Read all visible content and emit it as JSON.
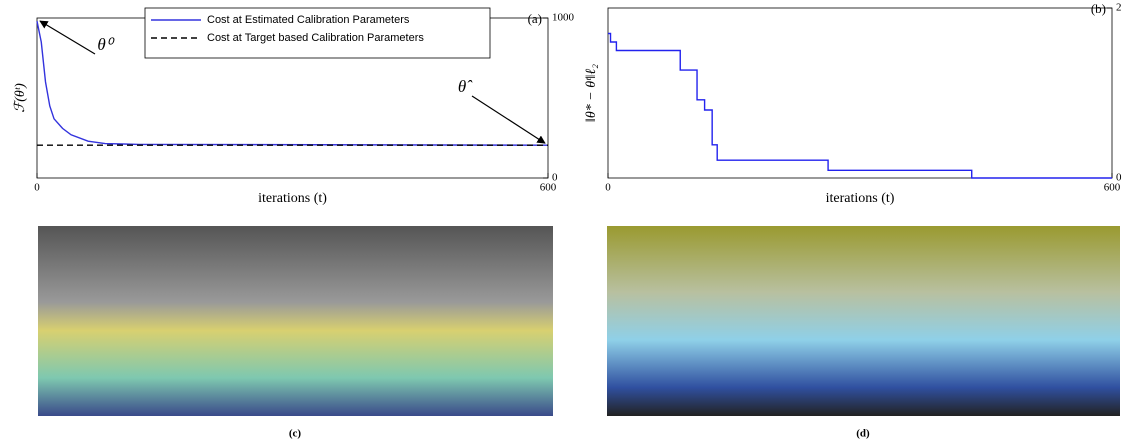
{
  "chart_data": [
    {
      "type": "line",
      "panel_label": "(a)",
      "annotations": [
        "θ⁰",
        "θ̂"
      ],
      "xlabel": "iterations (t)",
      "ylabel": "ℱ(θᵗ)",
      "xlim": [
        0,
        600
      ],
      "xticks": [
        0,
        600
      ],
      "ylim": [
        0,
        1000
      ],
      "yticks": [
        0,
        1000
      ],
      "legend": "upper right",
      "series": [
        {
          "name": "Cost at Estimated Calibration Parameters",
          "color": "#3333dd",
          "linestyle": "solid",
          "x": [
            0,
            5,
            10,
            15,
            20,
            30,
            40,
            60,
            80,
            120,
            600
          ],
          "values": [
            980,
            850,
            600,
            450,
            370,
            310,
            270,
            230,
            215,
            210,
            205
          ]
        },
        {
          "name": "Cost at Target based Calibration Parameters",
          "color": "#000000",
          "linestyle": "dashed",
          "x": [
            0,
            600
          ],
          "values": [
            205,
            205
          ]
        }
      ]
    },
    {
      "type": "line",
      "panel_label": "(b)",
      "xlabel": "iterations (t)",
      "ylabel": "‖θ* − θᵗ‖ℓ₂",
      "xlim": [
        0,
        600
      ],
      "xticks": [
        0,
        600
      ],
      "ylim": [
        0,
        2
      ],
      "yticks": [
        0,
        2
      ],
      "series": [
        {
          "color": "#2222ee",
          "linestyle": "solid",
          "x": [
            0,
            3,
            3,
            10,
            10,
            86,
            86,
            106,
            106,
            115,
            115,
            124,
            124,
            130,
            130,
            262,
            262,
            433,
            433,
            600
          ],
          "values": [
            1.7,
            1.7,
            1.6,
            1.6,
            1.5,
            1.5,
            1.27,
            1.27,
            0.92,
            0.92,
            0.8,
            0.8,
            0.39,
            0.39,
            0.21,
            0.21,
            0.09,
            0.09,
            0,
            0
          ]
        }
      ]
    }
  ],
  "panels": [
    "(c)",
    "(d)"
  ]
}
